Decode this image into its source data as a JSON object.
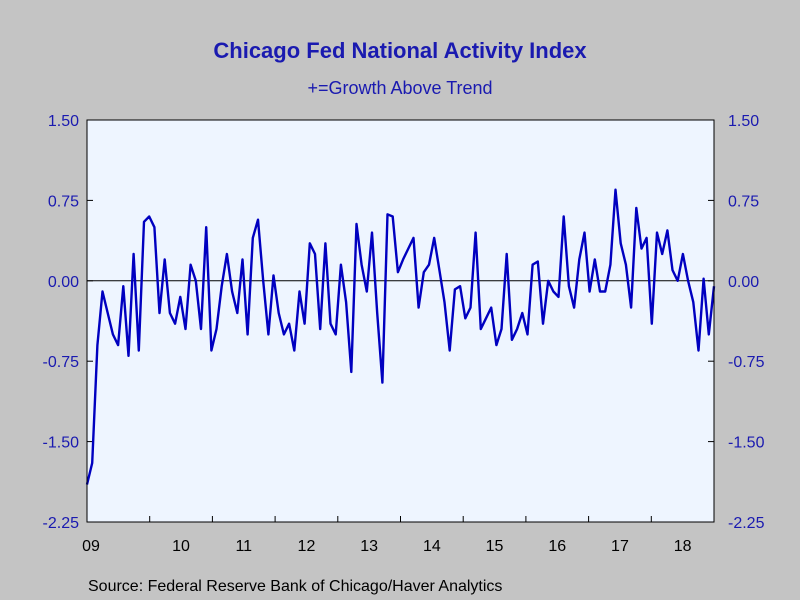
{
  "chart_data": {
    "type": "line",
    "title": "Chicago Fed National Activity Index",
    "subtitle": "+=Growth Above Trend",
    "source": "Source:  Federal Reserve Bank of Chicago/Haver Analytics",
    "xlabel": "",
    "ylabel": "",
    "ylim": [
      -2.25,
      1.5
    ],
    "yticks": [
      "1.50",
      "0.75",
      "0.00",
      "-0.75",
      "-1.50",
      "-2.25"
    ],
    "ytick_values": [
      1.5,
      0.75,
      0.0,
      -0.75,
      -1.5,
      -2.25
    ],
    "xtick_labels": [
      "09",
      "10",
      "11",
      "12",
      "13",
      "14",
      "15",
      "16",
      "17",
      "18"
    ],
    "x_start": "2009-01",
    "x_end": "2019-01",
    "grid": false,
    "zero_line": true,
    "colors": {
      "line": "#0000c0",
      "plot_bg": "#eef5ff",
      "page_bg": "#c4c4c4",
      "text": "#1a1ab0"
    },
    "series": [
      {
        "values": [
          -1.9,
          -1.7,
          -0.6,
          -0.1,
          -0.3,
          -0.5,
          -0.6,
          -0.05,
          -0.7,
          0.25,
          -0.65,
          0.55,
          0.6,
          0.5,
          -0.3,
          0.2,
          -0.3,
          -0.4,
          -0.15,
          -0.45,
          0.15,
          0.0,
          -0.45,
          0.5,
          -0.65,
          -0.45,
          -0.05,
          0.25,
          -0.1,
          -0.3,
          0.2,
          -0.5,
          0.4,
          0.57,
          0.0,
          -0.5,
          0.05,
          -0.3,
          -0.5,
          -0.4,
          -0.65,
          -0.1,
          -0.4,
          0.35,
          0.25,
          -0.45,
          0.35,
          -0.4,
          -0.5,
          0.15,
          -0.2,
          -0.85,
          0.53,
          0.15,
          -0.1,
          0.45,
          -0.3,
          -0.95,
          0.62,
          0.6,
          0.08,
          0.2,
          0.3,
          0.4,
          -0.25,
          0.08,
          0.15,
          0.4,
          0.1,
          -0.2,
          -0.65,
          -0.08,
          -0.05,
          -0.35,
          -0.25,
          0.45,
          -0.45,
          -0.35,
          -0.25,
          -0.6,
          -0.45,
          0.25,
          -0.55,
          -0.45,
          -0.3,
          -0.5,
          0.15,
          0.18,
          -0.4,
          0.0,
          -0.1,
          -0.15,
          0.6,
          -0.05,
          -0.25,
          0.2,
          0.45,
          -0.1,
          0.2,
          -0.1,
          -0.1,
          0.15,
          0.85,
          0.35,
          0.15,
          -0.25,
          0.68,
          0.3,
          0.4,
          -0.4,
          0.45,
          0.25,
          0.47,
          0.1,
          0.0,
          0.25,
          0.0,
          -0.2,
          -0.65,
          0.02,
          -0.5,
          -0.05
        ]
      }
    ]
  }
}
